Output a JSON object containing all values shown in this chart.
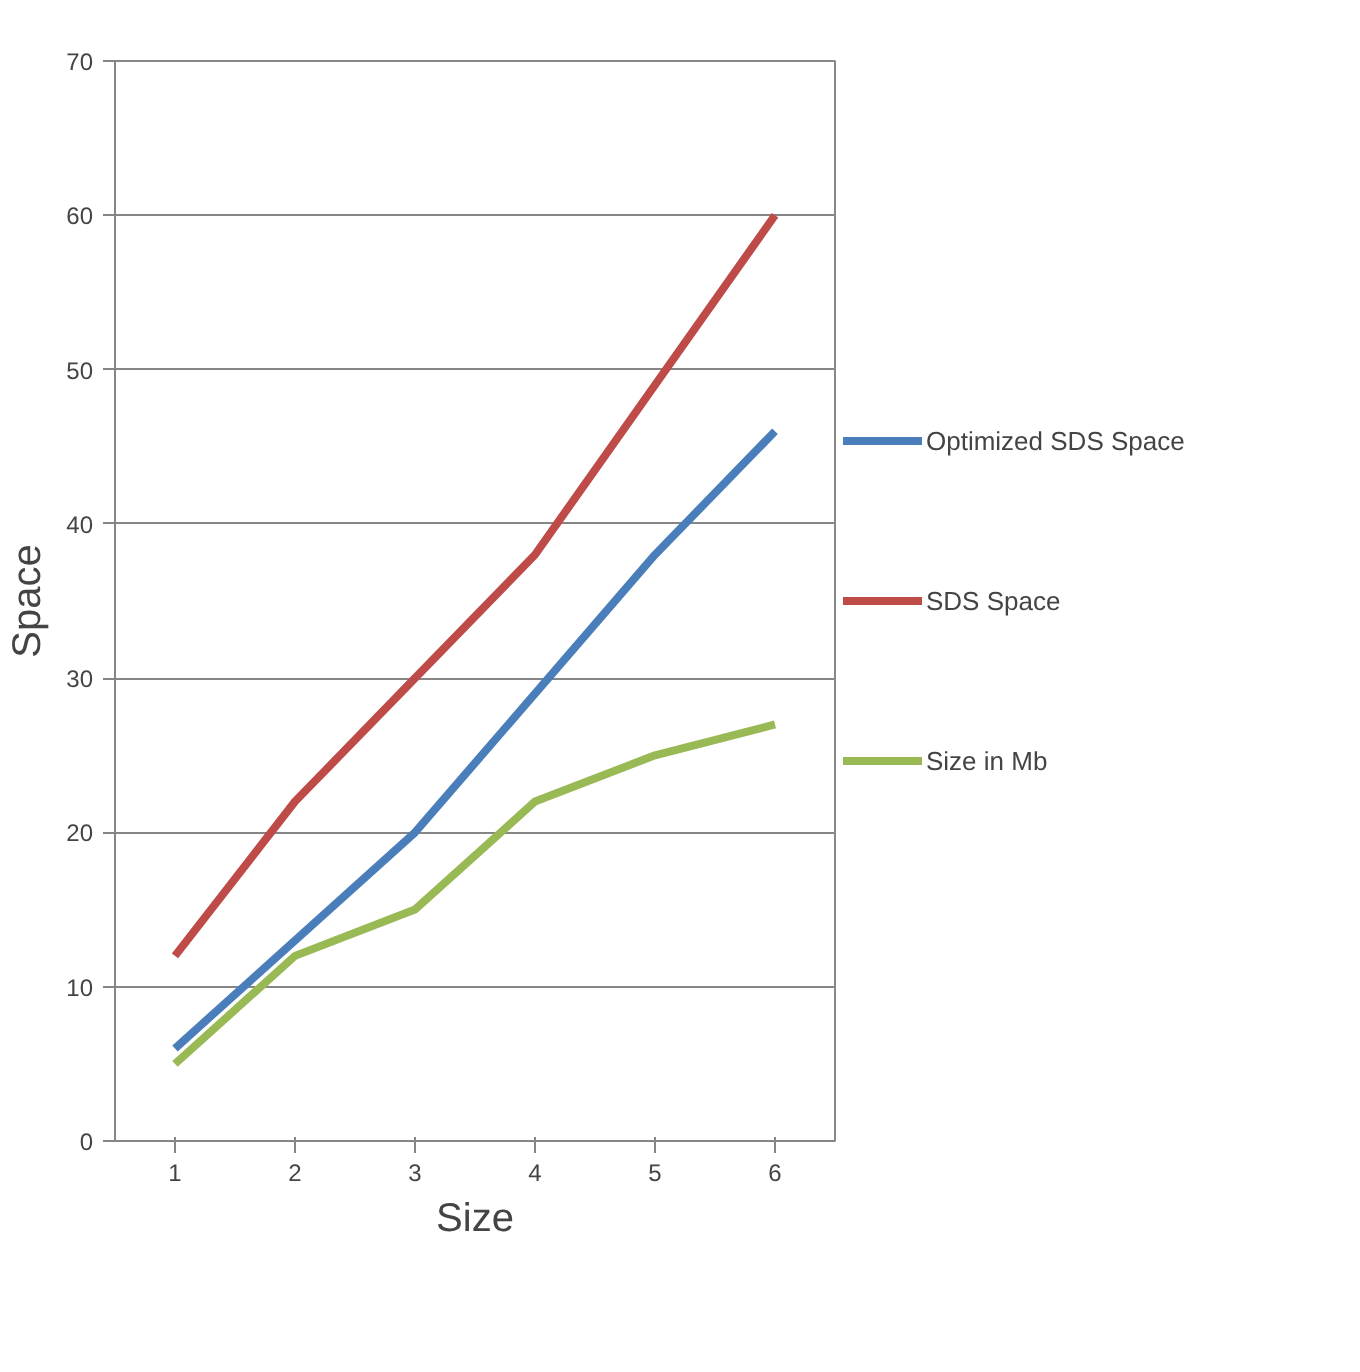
{
  "chart_data": {
    "type": "line",
    "xlabel": "Size",
    "ylabel": "Space",
    "categories": [
      "1",
      "2",
      "3",
      "4",
      "5",
      "6"
    ],
    "series": [
      {
        "name": "Optimized SDS Space",
        "color": "#4a7ebb",
        "values": [
          6,
          13,
          20,
          29,
          38,
          46
        ]
      },
      {
        "name": "SDS Space",
        "color": "#be4b48",
        "values": [
          12,
          22,
          30,
          38,
          49,
          60
        ]
      },
      {
        "name": "Size in Mb",
        "color": "#98b954",
        "values": [
          5,
          12,
          15,
          22,
          25,
          27
        ]
      }
    ],
    "ylim": [
      0,
      70
    ],
    "yticks": [
      0,
      10,
      20,
      30,
      40,
      50,
      60,
      70
    ],
    "grid": "y",
    "legend": "right",
    "marker": "none",
    "line_style": "solid"
  }
}
